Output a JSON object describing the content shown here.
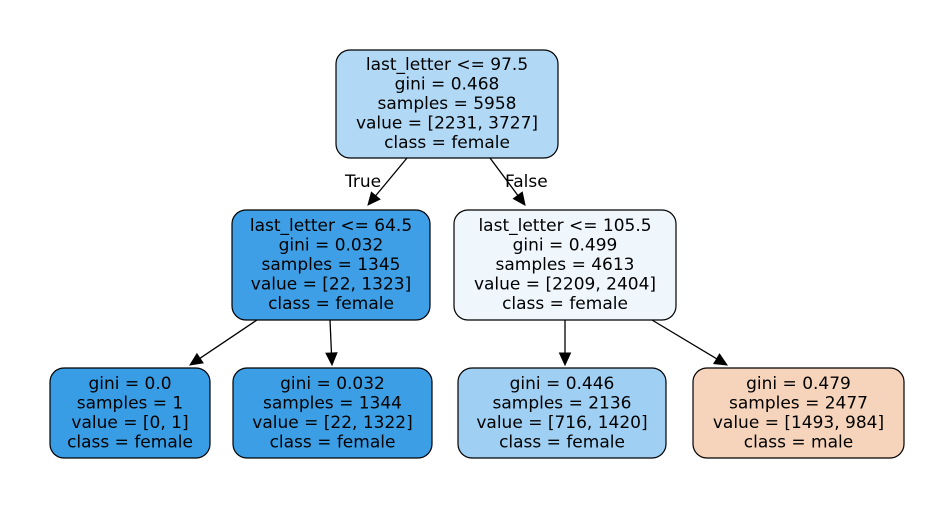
{
  "tree": {
    "nodes": [
      {
        "id": "root",
        "fill": "#b1d8f5",
        "lines": [
          "last_letter <= 97.5",
          "gini = 0.468",
          "samples = 5958",
          "value = [2231, 3727]",
          "class = female"
        ]
      },
      {
        "id": "left",
        "fill": "#3e9fe6",
        "lines": [
          "last_letter <= 64.5",
          "gini = 0.032",
          "samples = 1345",
          "value = [22, 1323]",
          "class = female"
        ]
      },
      {
        "id": "right",
        "fill": "#eff7fd",
        "lines": [
          "last_letter <= 105.5",
          "gini = 0.499",
          "samples = 4613",
          "value = [2209, 2404]",
          "class = female"
        ]
      },
      {
        "id": "leaf1",
        "fill": "#399de5",
        "lines": [
          "gini = 0.0",
          "samples = 1",
          "value = [0, 1]",
          "class = female"
        ]
      },
      {
        "id": "leaf2",
        "fill": "#3c9fe5",
        "lines": [
          "gini = 0.032",
          "samples = 1344",
          "value = [22, 1322]",
          "class = female"
        ]
      },
      {
        "id": "leaf3",
        "fill": "#9fcff2",
        "lines": [
          "gini = 0.446",
          "samples = 2136",
          "value = [716, 1420]",
          "class = female"
        ]
      },
      {
        "id": "leaf4",
        "fill": "#f6d4bb",
        "lines": [
          "gini = 0.479",
          "samples = 2477",
          "value = [1493, 984]",
          "class = male"
        ]
      }
    ],
    "edges": [
      {
        "from": "root",
        "to": "left",
        "label": "True"
      },
      {
        "from": "root",
        "to": "right",
        "label": "False"
      },
      {
        "from": "left",
        "to": "leaf1",
        "label": ""
      },
      {
        "from": "left",
        "to": "leaf2",
        "label": ""
      },
      {
        "from": "right",
        "to": "leaf3",
        "label": ""
      },
      {
        "from": "right",
        "to": "leaf4",
        "label": ""
      }
    ]
  }
}
